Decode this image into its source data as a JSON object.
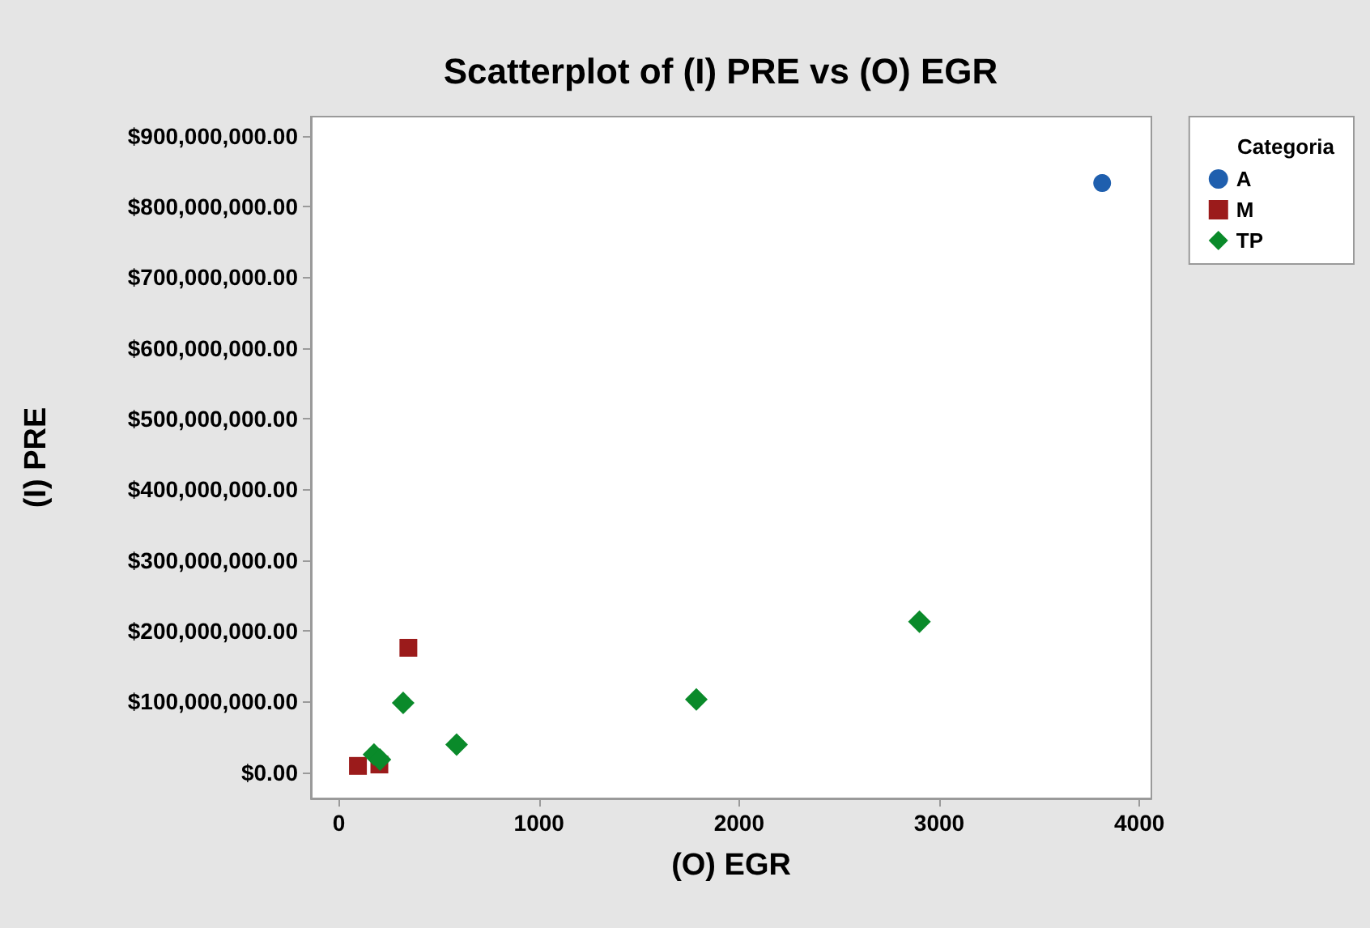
{
  "chart_data": {
    "type": "scatter",
    "title": "Scatterplot of (I) PRE vs (O) EGR",
    "xlabel": "(O) EGR",
    "ylabel": "(I) PRE",
    "legend_title": "Categoria",
    "legend": "top right",
    "grid": false,
    "xlim": [
      -140,
      4060
    ],
    "xticks": [
      0,
      1000,
      2000,
      3000,
      4000
    ],
    "ylim": [
      -37000000,
      927000000
    ],
    "yticks": [
      {
        "value": 0,
        "label": "$0.00"
      },
      {
        "value": 100000000,
        "label": "$100,000,000.00"
      },
      {
        "value": 200000000,
        "label": "$200,000,000.00"
      },
      {
        "value": 300000000,
        "label": "$300,000,000.00"
      },
      {
        "value": 400000000,
        "label": "$400,000,000.00"
      },
      {
        "value": 500000000,
        "label": "$500,000,000.00"
      },
      {
        "value": 600000000,
        "label": "$600,000,000.00"
      },
      {
        "value": 700000000,
        "label": "$700,000,000.00"
      },
      {
        "value": 800000000,
        "label": "$800,000,000.00"
      },
      {
        "value": 900000000,
        "label": "$900,000,000.00"
      }
    ],
    "series": [
      {
        "name": "A",
        "color": "#1f5fae",
        "marker": "circle",
        "x": [
          3814
        ],
        "values": [
          833000000
        ]
      },
      {
        "name": "M",
        "color": "#9b1b1b",
        "marker": "square",
        "x": [
          95,
          202,
          347
        ],
        "values": [
          9000000,
          11000000,
          176000000
        ]
      },
      {
        "name": "TP",
        "color": "#0a8a2a",
        "marker": "diamond",
        "x": [
          175,
          205,
          321,
          588,
          1786,
          2901
        ],
        "values": [
          25000000,
          18000000,
          98000000,
          39000000,
          103000000,
          213000000
        ]
      }
    ]
  }
}
